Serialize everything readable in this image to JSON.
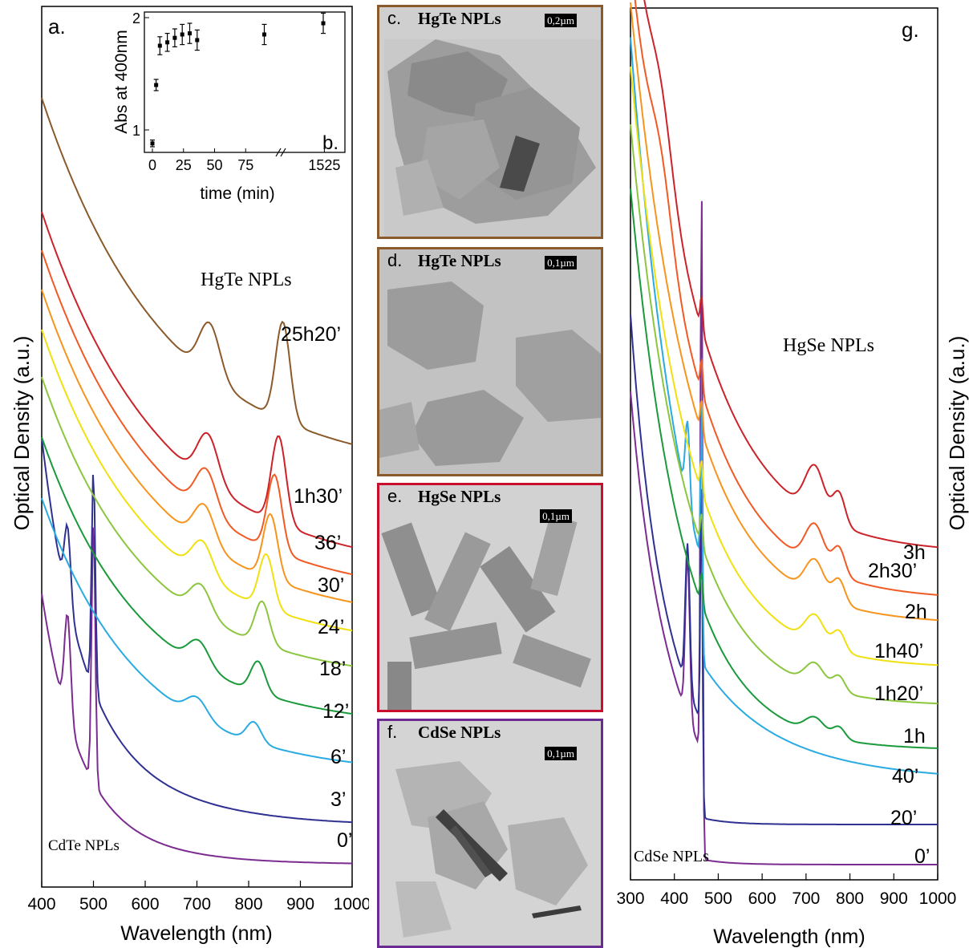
{
  "panel_a": {
    "letter": "a.",
    "ylabel": "Optical Density (a.u.)",
    "xlabel": "Wavelength (nm)",
    "title_label": "HgTe NPLs",
    "base_label": "CdTe NPLs",
    "time_labels": [
      "25h20’",
      "1h30’",
      "36’",
      "30’",
      "24’",
      "18’",
      "12’",
      "6’",
      "3’",
      "0’"
    ]
  },
  "panel_b": {
    "letter": "b.",
    "ylabel": "Abs at 400nm",
    "xlabel": "time (min)"
  },
  "panel_g": {
    "letter": "g.",
    "ylabel": "Optical Density (a.u.)",
    "xlabel": "Wavelength (nm)",
    "title_label": "HgSe NPLs",
    "base_label": "CdSe NPLs",
    "time_labels": [
      "3h",
      "2h30’",
      "2h",
      "1h40’",
      "1h20’",
      "1h",
      "40’",
      "20’",
      "0’"
    ]
  },
  "tem_panels": [
    {
      "letter": "c.",
      "title": "HgTe NPLs",
      "scale": "0,2µm",
      "border": "#8b5a2b"
    },
    {
      "letter": "d.",
      "title": "HgTe NPLs",
      "scale": "0,1µm",
      "border": "#8b5a2b"
    },
    {
      "letter": "e.",
      "title": "HgSe NPLs",
      "scale": "0,1µm",
      "border": "#c8102e"
    },
    {
      "letter": "f.",
      "title": "CdSe NPLs",
      "scale": "0,1µm",
      "border": "#6a2c91"
    }
  ],
  "chart_data": [
    {
      "type": "line",
      "panel": "a",
      "xlabel": "Wavelength (nm)",
      "ylabel": "Optical Density (a.u.)",
      "xlim": [
        400,
        1000
      ],
      "xticks": [
        400,
        500,
        600,
        700,
        800,
        900,
        1000
      ],
      "y_scale": "arbitrary (curves vertically offset)",
      "series": [
        {
          "name": "0’",
          "color": "#7b2c91",
          "features": "CdTe excitonic peaks at 450 and 500 nm"
        },
        {
          "name": "3’",
          "color": "#2e3192",
          "features": "peaks at 450 and 500 nm"
        },
        {
          "name": "6’",
          "color": "#29abe2",
          "features": "shoulder near 700 nm"
        },
        {
          "name": "12’",
          "color": "#1a9a3a",
          "features": "peaks near 720 and 830 nm"
        },
        {
          "name": "18’",
          "color": "#8cc63f",
          "features": "peaks near 715 and 850 nm"
        },
        {
          "name": "24’",
          "color": "#f0e010",
          "features": "peaks near 720 and 855 nm"
        },
        {
          "name": "30’",
          "color": "#f7941d",
          "features": "peaks near 720 and 858 nm"
        },
        {
          "name": "36’",
          "color": "#f15a24",
          "features": "peaks near 722 and 860 nm"
        },
        {
          "name": "1h30’",
          "color": "#cc2229",
          "features": "peaks near 725 and 865 nm"
        },
        {
          "name": "25h20’",
          "color": "#8b5a2b",
          "features": "peaks near 730 and 870 nm"
        }
      ]
    },
    {
      "type": "scatter",
      "panel": "b",
      "xlabel": "time (min)",
      "ylabel": "Abs at 400nm",
      "xticks": [
        "0",
        "25",
        "50",
        "75",
        "1525"
      ],
      "yticks": [
        "1",
        "2"
      ],
      "ylim": [
        0.8,
        2.05
      ],
      "x_axis_break": true,
      "points": [
        {
          "x": 0,
          "y": 0.88,
          "err": 0.03
        },
        {
          "x": 3,
          "y": 1.4,
          "err": 0.05
        },
        {
          "x": 6,
          "y": 1.75,
          "err": 0.08
        },
        {
          "x": 12,
          "y": 1.78,
          "err": 0.08
        },
        {
          "x": 18,
          "y": 1.82,
          "err": 0.08
        },
        {
          "x": 24,
          "y": 1.85,
          "err": 0.09
        },
        {
          "x": 30,
          "y": 1.86,
          "err": 0.09
        },
        {
          "x": 36,
          "y": 1.8,
          "err": 0.09
        },
        {
          "x": 90,
          "y": 1.85,
          "err": 0.09
        },
        {
          "x": 1520,
          "y": 1.95,
          "err": 0.09
        }
      ]
    },
    {
      "type": "line",
      "panel": "g",
      "xlabel": "Wavelength (nm)",
      "ylabel": "Optical Density (a.u.)",
      "xlim": [
        300,
        1000
      ],
      "xticks": [
        300,
        400,
        500,
        600,
        700,
        800,
        900,
        1000
      ],
      "y_scale": "arbitrary (curves vertically offset)",
      "series": [
        {
          "name": "0’",
          "color": "#7b2c91",
          "features": "CdSe excitonic peaks at 430 and 462 nm"
        },
        {
          "name": "20’",
          "color": "#2e3192",
          "features": "peaks at 430 and 462 nm"
        },
        {
          "name": "40’",
          "color": "#29abe2",
          "features": "peaks near 430 and 462 nm"
        },
        {
          "name": "1h",
          "color": "#1a9a3a",
          "features": "broad feature near 720 nm"
        },
        {
          "name": "1h20’",
          "color": "#8cc63f",
          "features": "features near 720 and 770 nm"
        },
        {
          "name": "1h40’",
          "color": "#f0e010",
          "features": "peak near 720 nm"
        },
        {
          "name": "2h",
          "color": "#f7941d",
          "features": "peak near 720 nm"
        },
        {
          "name": "2h30’",
          "color": "#f15a24",
          "features": "peak near 720 nm"
        },
        {
          "name": "3h",
          "color": "#cc2229",
          "features": "peaks near 720 and 770 nm"
        }
      ]
    }
  ]
}
